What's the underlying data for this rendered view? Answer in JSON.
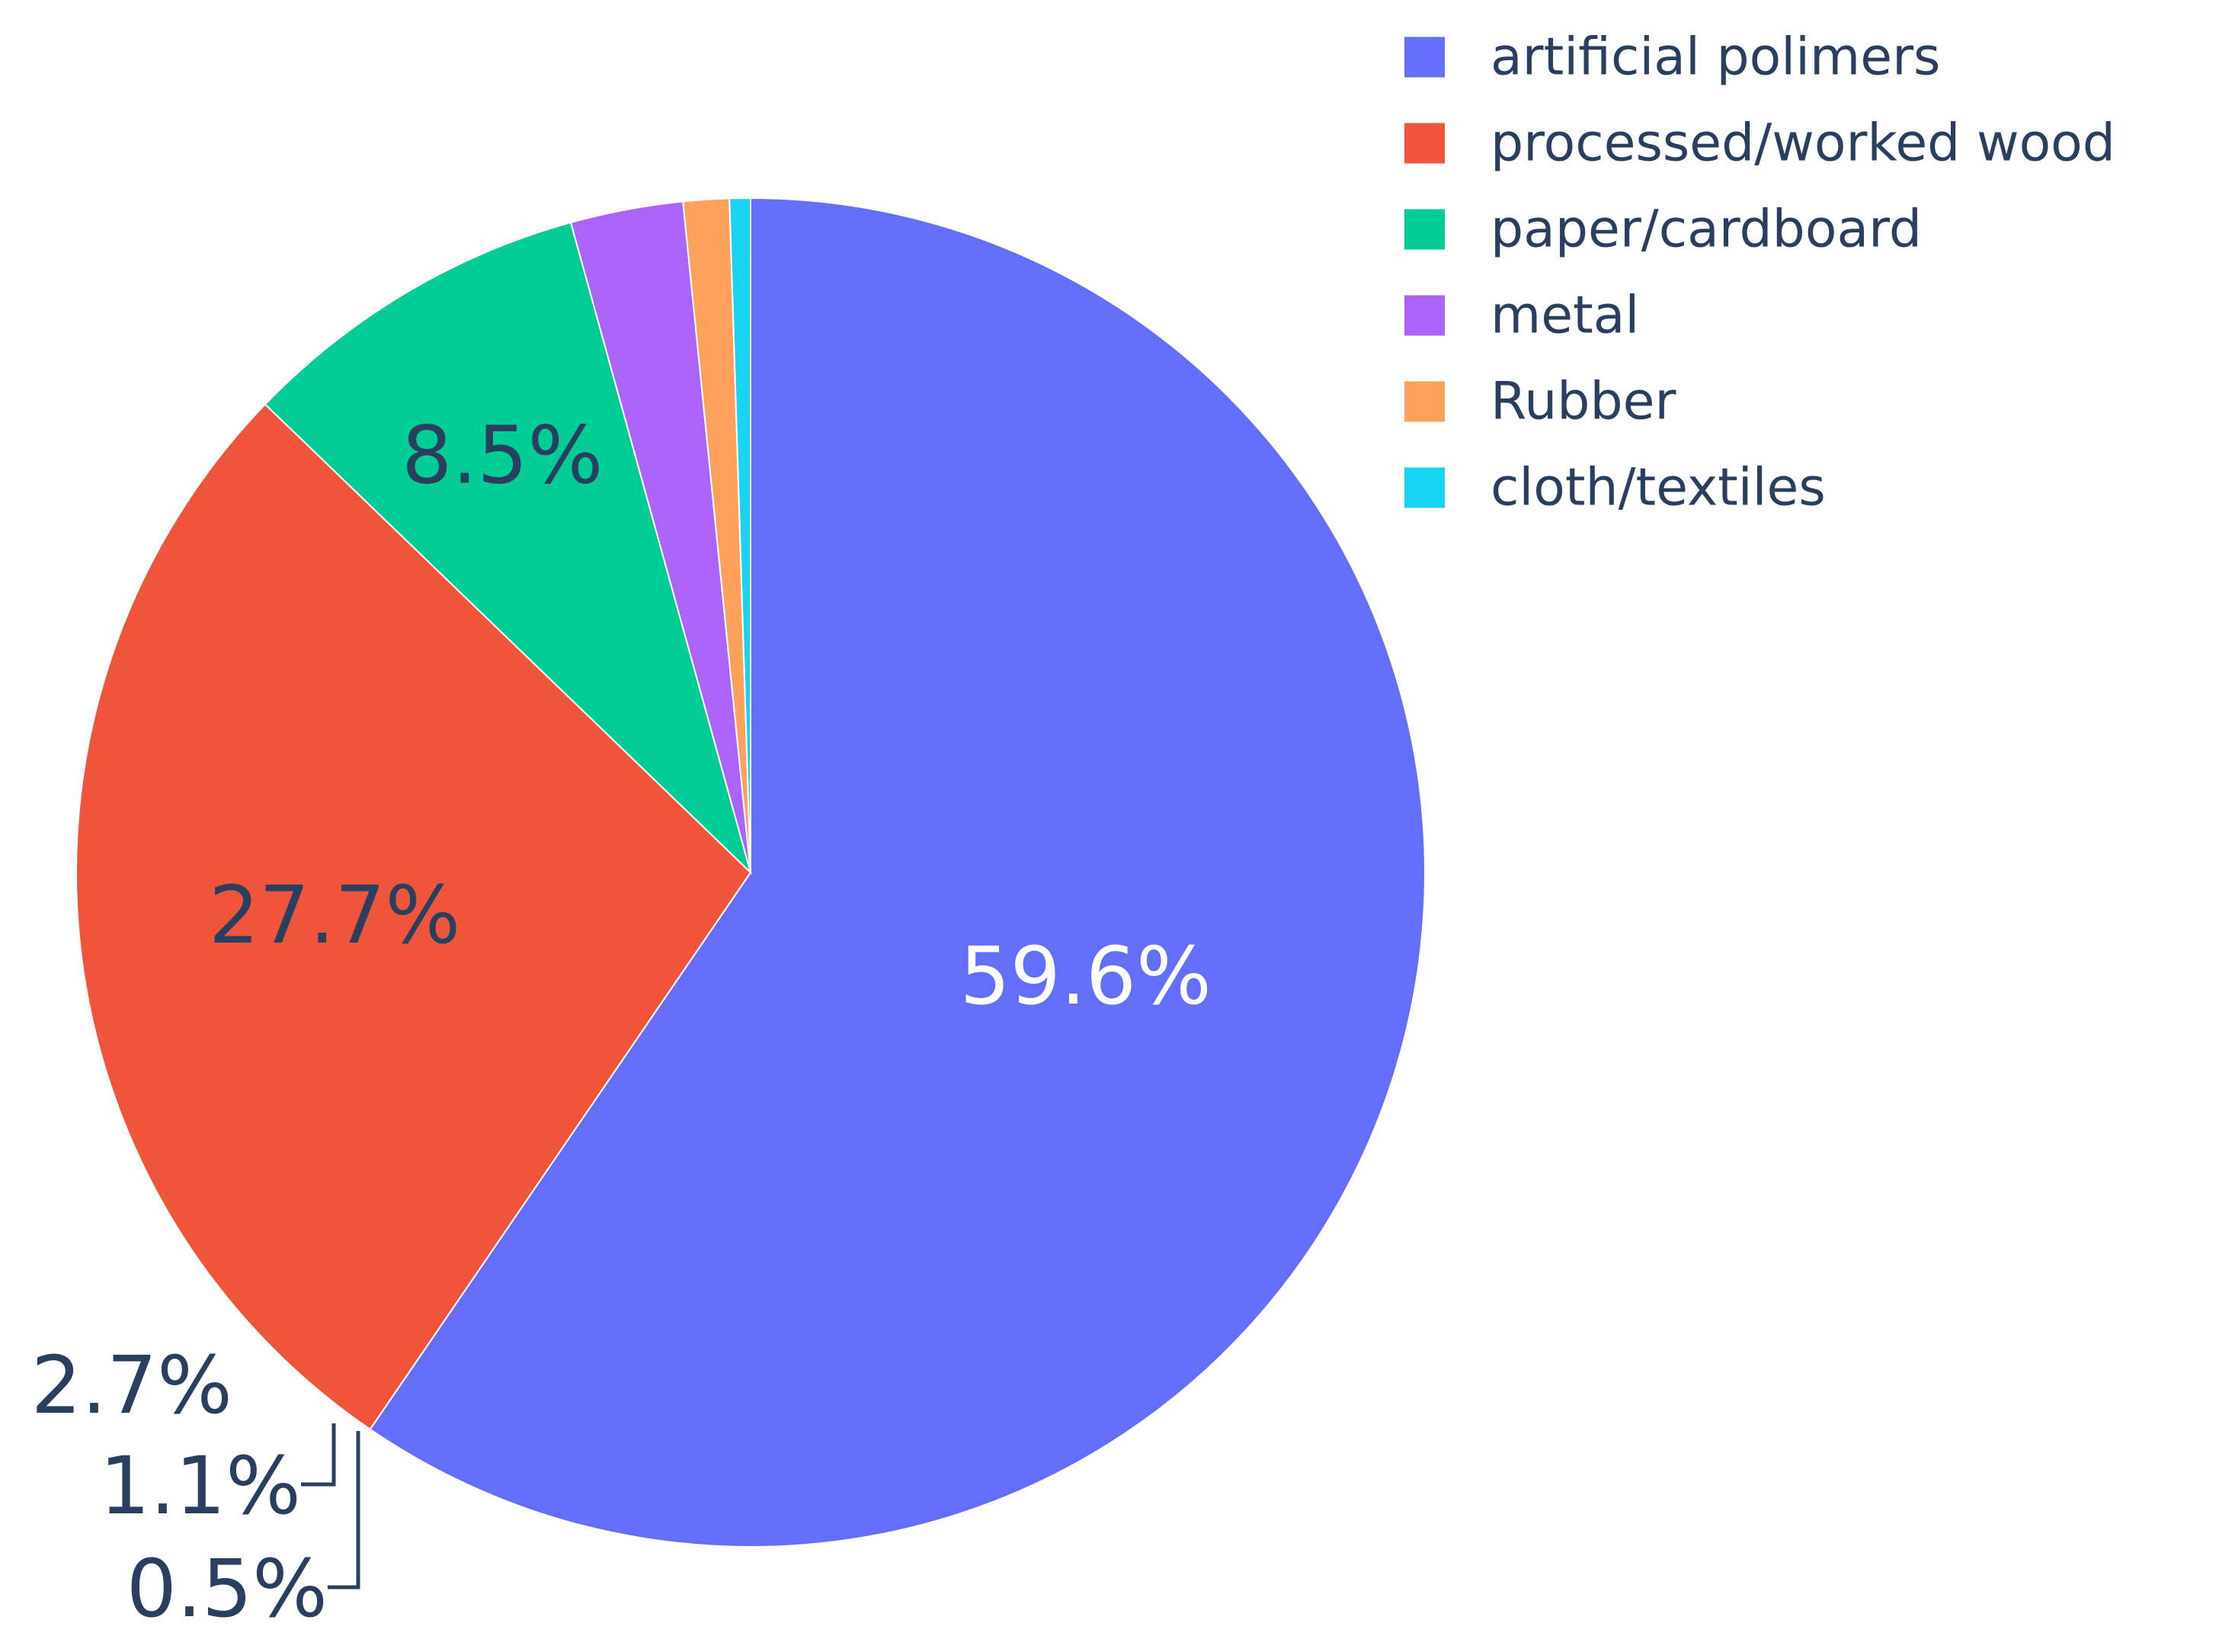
{
  "chart_data": {
    "type": "pie",
    "labels": [
      "artificial polimers",
      "processed/worked wood",
      "paper/cardboard",
      "metal",
      "Rubber",
      "cloth/textiles"
    ],
    "values": [
      59.6,
      27.7,
      8.5,
      2.7,
      1.1,
      0.5
    ],
    "value_labels": [
      "59.6%",
      "27.7%",
      "8.5%",
      "2.7%",
      "1.1%",
      "0.5%"
    ],
    "colors": [
      "#636efa",
      "#ef553b",
      "#00cc96",
      "#ab63fa",
      "#ffa15a",
      "#19d3f3"
    ],
    "label_colors": [
      "#ffffff",
      "#2a3f5f",
      "#2a3f5f",
      "#2a3f5f",
      "#2a3f5f",
      "#2a3f5f"
    ],
    "direction": "clockwise",
    "start": "12 o'clock",
    "legend_position": "top-right"
  }
}
